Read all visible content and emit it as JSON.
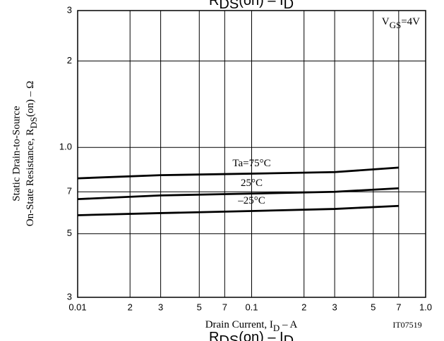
{
  "chart_data": {
    "type": "line",
    "title": [
      "R",
      "DS",
      "(on)  –  I",
      "D"
    ],
    "caption": [
      "R",
      "DS",
      "(on)  –  I",
      "D"
    ],
    "x_label": [
      "Drain Current, I",
      "D",
      "  –  A"
    ],
    "y_label": [
      "Static Drain-to-Source",
      [
        "On-State Resistance, R",
        "DS",
        "(on)  –  Ω"
      ]
    ],
    "annotation": [
      "V",
      "GS",
      "=4V"
    ],
    "code": "IT07519",
    "x": [
      0.01,
      0.03,
      0.1,
      0.3,
      0.7
    ],
    "series": [
      {
        "name": "Ta=75°C",
        "color": "#000000",
        "values": [
          0.78,
          0.8,
          0.81,
          0.82,
          0.85
        ]
      },
      {
        "name": "25°C",
        "color": "#000000",
        "values": [
          0.66,
          0.68,
          0.69,
          0.7,
          0.72
        ]
      },
      {
        "name": "–25°C",
        "color": "#000000",
        "values": [
          0.58,
          0.59,
          0.6,
          0.61,
          0.625
        ]
      }
    ],
    "xlim": [
      0.01,
      1.0
    ],
    "ylim": [
      0.3,
      3
    ],
    "xscale": "log",
    "yscale": "log",
    "grid": true,
    "xticks": [
      {
        "value": 0.01,
        "label": "0.01"
      },
      {
        "value": 0.02,
        "label": "2"
      },
      {
        "value": 0.03,
        "label": "3"
      },
      {
        "value": 0.05,
        "label": "5"
      },
      {
        "value": 0.07,
        "label": "7"
      },
      0.1,
      {
        "value": 0.2,
        "label": "2"
      },
      {
        "value": 0.3,
        "label": "3"
      },
      {
        "value": 0.5,
        "label": "5"
      },
      {
        "value": 0.7,
        "label": "7"
      },
      {
        "value": 1.0,
        "label": "1.0"
      }
    ],
    "yticks": [
      {
        "value": 0.3,
        "label": "3"
      },
      {
        "value": 0.5,
        "label": "5"
      },
      {
        "value": 0.7,
        "label": "7"
      },
      {
        "value": 1.0,
        "label": "1.0"
      },
      2,
      3
    ]
  }
}
